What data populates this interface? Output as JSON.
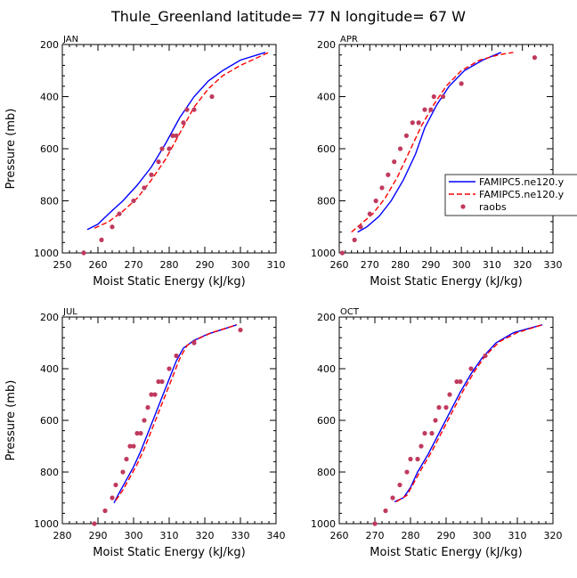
{
  "figure": {
    "title": "Thule_Greenland   latitude= 77 N longitude= 67 W"
  },
  "colors": {
    "model_solid": "#0000ff",
    "model_dashed": "#ff0000",
    "raobs": "#c03a5e",
    "axis": "#000000"
  },
  "legend": {
    "entries": [
      "FAMIPC5.ne120.y",
      "FAMIPC5.ne120.y",
      "raobs"
    ],
    "placement": "right of APR panel"
  },
  "chart_data": [
    {
      "type": "line",
      "panel": "JAN",
      "xlabel": "Moist Static Energy (kJ/kg)",
      "ylabel": "Pressure (mb)",
      "xlim": [
        250,
        310
      ],
      "ylim": [
        1000,
        200
      ],
      "y_inverted": true,
      "xticks": [
        250,
        260,
        270,
        280,
        290,
        300,
        310
      ],
      "yticks": [
        200,
        400,
        600,
        800,
        1000
      ],
      "series": [
        {
          "name": "FAMIPC5.ne120.y",
          "style": "solid",
          "x": [
            257,
            260,
            263,
            267,
            271,
            275,
            279,
            283,
            287,
            291,
            295,
            300,
            307
          ],
          "y": [
            910,
            890,
            850,
            800,
            740,
            670,
            580,
            480,
            400,
            340,
            300,
            260,
            230
          ]
        },
        {
          "name": "FAMIPC5.ne120.y",
          "style": "dashed",
          "x": [
            259,
            263,
            267,
            271,
            275,
            279,
            283,
            287,
            291,
            295,
            300,
            308
          ],
          "y": [
            905,
            880,
            840,
            790,
            720,
            640,
            540,
            440,
            370,
            320,
            280,
            230
          ]
        },
        {
          "name": "raobs",
          "style": "points",
          "x": [
            256,
            261,
            264,
            266,
            270,
            273,
            275,
            277,
            278,
            280,
            281,
            282,
            284,
            285,
            287,
            292
          ],
          "y": [
            1000,
            950,
            900,
            850,
            800,
            750,
            700,
            650,
            600,
            600,
            550,
            550,
            500,
            450,
            450,
            400
          ]
        }
      ]
    },
    {
      "type": "line",
      "panel": "APR",
      "xlabel": "Moist Static Energy (kJ/kg)",
      "ylabel": "",
      "xlim": [
        260,
        330
      ],
      "ylim": [
        1000,
        200
      ],
      "y_inverted": true,
      "xticks": [
        260,
        270,
        280,
        290,
        300,
        310,
        320,
        330
      ],
      "yticks": [
        200,
        400,
        600,
        800,
        1000
      ],
      "series": [
        {
          "name": "FAMIPC5.ne120.y",
          "style": "solid",
          "x": [
            266,
            269,
            273,
            277,
            281,
            285,
            288,
            292,
            296,
            301,
            307,
            313
          ],
          "y": [
            920,
            900,
            860,
            800,
            720,
            620,
            520,
            430,
            360,
            300,
            260,
            230
          ]
        },
        {
          "name": "FAMIPC5.ne120.y",
          "style": "dashed",
          "x": [
            264,
            267,
            271,
            275,
            279,
            283,
            287,
            291,
            295,
            300,
            306,
            312,
            317
          ],
          "y": [
            920,
            890,
            850,
            790,
            710,
            610,
            510,
            430,
            360,
            300,
            260,
            240,
            230
          ]
        },
        {
          "name": "raobs",
          "style": "points",
          "x": [
            261,
            265,
            267,
            270,
            272,
            274,
            276,
            278,
            280,
            282,
            284,
            286,
            288,
            290,
            291,
            294,
            300,
            324
          ],
          "y": [
            1000,
            950,
            900,
            850,
            800,
            750,
            700,
            650,
            600,
            550,
            500,
            500,
            450,
            450,
            400,
            400,
            350,
            250
          ]
        }
      ]
    },
    {
      "type": "line",
      "panel": "JUL",
      "xlabel": "Moist Static Energy (kJ/kg)",
      "ylabel": "Pressure (mb)",
      "xlim": [
        280,
        340
      ],
      "ylim": [
        1000,
        200
      ],
      "y_inverted": true,
      "xticks": [
        280,
        290,
        300,
        310,
        320,
        330,
        340
      ],
      "yticks": [
        200,
        400,
        600,
        800,
        1000
      ],
      "series": [
        {
          "name": "FAMIPC5.ne120.y",
          "style": "solid",
          "x": [
            294.5,
            296,
            298,
            300,
            302,
            304,
            306,
            308,
            310,
            312,
            314,
            317,
            321,
            329
          ],
          "y": [
            920,
            880,
            830,
            780,
            720,
            650,
            580,
            510,
            440,
            370,
            320,
            290,
            265,
            230
          ]
        },
        {
          "name": "FAMIPC5.ne120.y",
          "style": "dashed",
          "x": [
            295,
            297,
            299,
            301,
            303,
            305,
            307,
            309,
            311,
            313,
            315,
            318,
            322,
            329
          ],
          "y": [
            910,
            870,
            820,
            770,
            710,
            640,
            570,
            500,
            430,
            360,
            310,
            285,
            260,
            230
          ]
        },
        {
          "name": "raobs",
          "style": "points",
          "x": [
            289,
            292,
            294,
            295,
            297,
            298,
            299,
            300,
            301,
            302,
            303,
            304,
            305,
            306,
            307,
            308,
            310,
            312,
            317,
            330
          ],
          "y": [
            1000,
            950,
            900,
            850,
            800,
            750,
            700,
            700,
            650,
            650,
            600,
            550,
            500,
            500,
            450,
            450,
            400,
            350,
            300,
            250
          ]
        }
      ]
    },
    {
      "type": "line",
      "panel": "OCT",
      "xlabel": "Moist Static Energy (kJ/kg)",
      "ylabel": "",
      "xlim": [
        260,
        320
      ],
      "ylim": [
        1000,
        200
      ],
      "y_inverted": true,
      "xticks": [
        260,
        270,
        280,
        290,
        300,
        310,
        320
      ],
      "yticks": [
        200,
        400,
        600,
        800,
        1000
      ],
      "series": [
        {
          "name": "FAMIPC5.ne120.y",
          "style": "solid",
          "x": [
            275.5,
            278,
            280,
            282,
            285,
            288,
            291,
            294,
            297,
            300,
            304,
            309,
            317
          ],
          "y": [
            915,
            900,
            860,
            800,
            730,
            650,
            570,
            490,
            420,
            360,
            300,
            260,
            230
          ]
        },
        {
          "name": "FAMIPC5.ne120.y",
          "style": "dashed",
          "x": [
            276,
            279,
            281,
            283,
            286,
            289,
            292,
            295,
            298,
            301,
            305,
            310,
            317
          ],
          "y": [
            915,
            890,
            840,
            790,
            720,
            640,
            560,
            480,
            410,
            350,
            295,
            260,
            230
          ]
        },
        {
          "name": "raobs",
          "style": "points",
          "x": [
            270,
            273,
            275,
            277,
            279,
            280,
            282,
            283,
            284,
            286,
            287,
            288,
            290,
            291,
            293,
            294,
            297,
            301
          ],
          "y": [
            1000,
            950,
            900,
            850,
            800,
            750,
            750,
            700,
            650,
            650,
            600,
            550,
            550,
            500,
            450,
            450,
            400,
            350
          ]
        }
      ]
    }
  ]
}
